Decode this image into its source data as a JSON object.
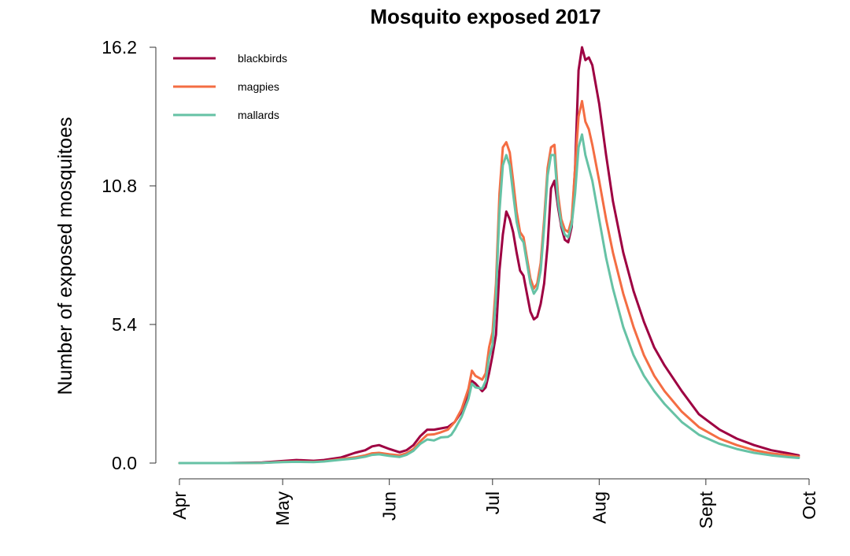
{
  "chart_data": {
    "type": "line",
    "title": "Mosquito exposed 2017",
    "xlabel": "",
    "ylabel": "Number of exposed mosquitoes",
    "xlim": [
      "2017-04-01",
      "2017-10-01"
    ],
    "ylim": [
      0,
      16.2
    ],
    "y_ticks": [
      0.0,
      5.4,
      10.8,
      16.2
    ],
    "y_tick_labels": [
      "0.0",
      "5.4",
      "10.8",
      "16.2"
    ],
    "x_ticks": [
      "2017-04-01",
      "2017-05-01",
      "2017-06-01",
      "2017-07-01",
      "2017-08-01",
      "2017-09-01",
      "2017-10-01"
    ],
    "x_tick_labels": [
      "Apr",
      "May",
      "Jun",
      "Jul",
      "Aug",
      "Sept",
      "Oct"
    ],
    "grid": false,
    "legend_position": "top-left",
    "series": [
      {
        "name": "blackbirds",
        "color": "#9E0142",
        "points": [
          [
            "2017-04-01",
            0.0
          ],
          [
            "2017-04-15",
            0.0
          ],
          [
            "2017-04-25",
            0.02
          ],
          [
            "2017-05-01",
            0.08
          ],
          [
            "2017-05-05",
            0.12
          ],
          [
            "2017-05-10",
            0.09
          ],
          [
            "2017-05-13",
            0.12
          ],
          [
            "2017-05-18",
            0.22
          ],
          [
            "2017-05-22",
            0.4
          ],
          [
            "2017-05-25",
            0.5
          ],
          [
            "2017-05-27",
            0.65
          ],
          [
            "2017-05-29",
            0.7
          ],
          [
            "2017-06-01",
            0.55
          ],
          [
            "2017-06-04",
            0.42
          ],
          [
            "2017-06-06",
            0.5
          ],
          [
            "2017-06-08",
            0.7
          ],
          [
            "2017-06-10",
            1.05
          ],
          [
            "2017-06-12",
            1.3
          ],
          [
            "2017-06-14",
            1.3
          ],
          [
            "2017-06-16",
            1.35
          ],
          [
            "2017-06-18",
            1.4
          ],
          [
            "2017-06-19",
            1.5
          ],
          [
            "2017-06-20",
            1.6
          ],
          [
            "2017-06-22",
            2.0
          ],
          [
            "2017-06-24",
            2.7
          ],
          [
            "2017-06-25",
            3.2
          ],
          [
            "2017-06-26",
            3.1
          ],
          [
            "2017-06-28",
            2.8
          ],
          [
            "2017-06-29",
            2.95
          ],
          [
            "2017-06-30",
            3.5
          ],
          [
            "2017-07-01",
            4.2
          ],
          [
            "2017-07-02",
            5.0
          ],
          [
            "2017-07-03",
            7.5
          ],
          [
            "2017-07-04",
            8.9
          ],
          [
            "2017-07-05",
            9.8
          ],
          [
            "2017-07-06",
            9.5
          ],
          [
            "2017-07-07",
            9.0
          ],
          [
            "2017-07-08",
            8.2
          ],
          [
            "2017-07-09",
            7.5
          ],
          [
            "2017-07-10",
            7.3
          ],
          [
            "2017-07-11",
            6.6
          ],
          [
            "2017-07-12",
            5.9
          ],
          [
            "2017-07-13",
            5.6
          ],
          [
            "2017-07-14",
            5.7
          ],
          [
            "2017-07-15",
            6.2
          ],
          [
            "2017-07-16",
            7.0
          ],
          [
            "2017-07-17",
            8.5
          ],
          [
            "2017-07-18",
            10.7
          ],
          [
            "2017-07-19",
            11.0
          ],
          [
            "2017-07-20",
            10.0
          ],
          [
            "2017-07-21",
            9.2
          ],
          [
            "2017-07-22",
            8.7
          ],
          [
            "2017-07-23",
            8.6
          ],
          [
            "2017-07-24",
            9.2
          ],
          [
            "2017-07-25",
            11.5
          ],
          [
            "2017-07-26",
            15.3
          ],
          [
            "2017-07-27",
            16.2
          ],
          [
            "2017-07-28",
            15.7
          ],
          [
            "2017-07-29",
            15.8
          ],
          [
            "2017-07-30",
            15.5
          ],
          [
            "2017-08-01",
            14.0
          ],
          [
            "2017-08-03",
            12.0
          ],
          [
            "2017-08-05",
            10.2
          ],
          [
            "2017-08-08",
            8.2
          ],
          [
            "2017-08-11",
            6.7
          ],
          [
            "2017-08-14",
            5.5
          ],
          [
            "2017-08-17",
            4.5
          ],
          [
            "2017-08-20",
            3.8
          ],
          [
            "2017-08-25",
            2.8
          ],
          [
            "2017-08-30",
            1.9
          ],
          [
            "2017-09-05",
            1.3
          ],
          [
            "2017-09-10",
            0.95
          ],
          [
            "2017-09-15",
            0.7
          ],
          [
            "2017-09-20",
            0.5
          ],
          [
            "2017-09-25",
            0.38
          ],
          [
            "2017-09-28",
            0.3
          ]
        ]
      },
      {
        "name": "magpies",
        "color": "#F46D43",
        "points": [
          [
            "2017-04-01",
            0.0
          ],
          [
            "2017-04-15",
            0.0
          ],
          [
            "2017-04-25",
            0.01
          ],
          [
            "2017-05-01",
            0.05
          ],
          [
            "2017-05-05",
            0.06
          ],
          [
            "2017-05-10",
            0.05
          ],
          [
            "2017-05-13",
            0.07
          ],
          [
            "2017-05-18",
            0.16
          ],
          [
            "2017-05-22",
            0.22
          ],
          [
            "2017-05-25",
            0.3
          ],
          [
            "2017-05-27",
            0.38
          ],
          [
            "2017-05-29",
            0.4
          ],
          [
            "2017-06-01",
            0.34
          ],
          [
            "2017-06-04",
            0.3
          ],
          [
            "2017-06-06",
            0.38
          ],
          [
            "2017-06-08",
            0.55
          ],
          [
            "2017-06-10",
            0.85
          ],
          [
            "2017-06-12",
            1.1
          ],
          [
            "2017-06-14",
            1.12
          ],
          [
            "2017-06-16",
            1.2
          ],
          [
            "2017-06-18",
            1.3
          ],
          [
            "2017-06-19",
            1.45
          ],
          [
            "2017-06-20",
            1.6
          ],
          [
            "2017-06-22",
            2.1
          ],
          [
            "2017-06-24",
            2.9
          ],
          [
            "2017-06-25",
            3.6
          ],
          [
            "2017-06-26",
            3.4
          ],
          [
            "2017-06-28",
            3.25
          ],
          [
            "2017-06-29",
            3.5
          ],
          [
            "2017-06-30",
            4.5
          ],
          [
            "2017-07-01",
            5.1
          ],
          [
            "2017-07-02",
            7.0
          ],
          [
            "2017-07-03",
            10.5
          ],
          [
            "2017-07-04",
            12.3
          ],
          [
            "2017-07-05",
            12.5
          ],
          [
            "2017-07-06",
            12.1
          ],
          [
            "2017-07-07",
            11.0
          ],
          [
            "2017-07-08",
            9.8
          ],
          [
            "2017-07-09",
            9.0
          ],
          [
            "2017-07-10",
            8.8
          ],
          [
            "2017-07-11",
            8.0
          ],
          [
            "2017-07-12",
            7.2
          ],
          [
            "2017-07-13",
            6.8
          ],
          [
            "2017-07-14",
            7.0
          ],
          [
            "2017-07-15",
            7.8
          ],
          [
            "2017-07-16",
            9.5
          ],
          [
            "2017-07-17",
            11.5
          ],
          [
            "2017-07-18",
            12.3
          ],
          [
            "2017-07-19",
            12.4
          ],
          [
            "2017-07-20",
            10.5
          ],
          [
            "2017-07-21",
            9.5
          ],
          [
            "2017-07-22",
            9.1
          ],
          [
            "2017-07-23",
            9.0
          ],
          [
            "2017-07-24",
            9.5
          ],
          [
            "2017-07-25",
            11.5
          ],
          [
            "2017-07-26",
            13.5
          ],
          [
            "2017-07-27",
            14.1
          ],
          [
            "2017-07-28",
            13.3
          ],
          [
            "2017-07-29",
            13.0
          ],
          [
            "2017-07-30",
            12.4
          ],
          [
            "2017-08-01",
            11.0
          ],
          [
            "2017-08-03",
            9.5
          ],
          [
            "2017-08-05",
            8.2
          ],
          [
            "2017-08-08",
            6.6
          ],
          [
            "2017-08-11",
            5.3
          ],
          [
            "2017-08-14",
            4.2
          ],
          [
            "2017-08-17",
            3.4
          ],
          [
            "2017-08-20",
            2.8
          ],
          [
            "2017-08-25",
            2.0
          ],
          [
            "2017-08-30",
            1.4
          ],
          [
            "2017-09-05",
            0.95
          ],
          [
            "2017-09-10",
            0.7
          ],
          [
            "2017-09-15",
            0.5
          ],
          [
            "2017-09-20",
            0.38
          ],
          [
            "2017-09-25",
            0.3
          ],
          [
            "2017-09-28",
            0.25
          ]
        ]
      },
      {
        "name": "mallards",
        "color": "#66C2A5",
        "points": [
          [
            "2017-04-01",
            0.0
          ],
          [
            "2017-04-15",
            0.0
          ],
          [
            "2017-04-25",
            0.01
          ],
          [
            "2017-05-01",
            0.04
          ],
          [
            "2017-05-05",
            0.05
          ],
          [
            "2017-05-10",
            0.04
          ],
          [
            "2017-05-13",
            0.06
          ],
          [
            "2017-05-18",
            0.13
          ],
          [
            "2017-05-22",
            0.18
          ],
          [
            "2017-05-25",
            0.25
          ],
          [
            "2017-05-27",
            0.32
          ],
          [
            "2017-05-29",
            0.34
          ],
          [
            "2017-06-01",
            0.28
          ],
          [
            "2017-06-04",
            0.24
          ],
          [
            "2017-06-06",
            0.32
          ],
          [
            "2017-06-08",
            0.48
          ],
          [
            "2017-06-10",
            0.75
          ],
          [
            "2017-06-12",
            0.92
          ],
          [
            "2017-06-14",
            0.88
          ],
          [
            "2017-06-16",
            1.0
          ],
          [
            "2017-06-18",
            1.02
          ],
          [
            "2017-06-19",
            1.1
          ],
          [
            "2017-06-20",
            1.3
          ],
          [
            "2017-06-22",
            1.8
          ],
          [
            "2017-06-24",
            2.5
          ],
          [
            "2017-06-25",
            3.1
          ],
          [
            "2017-06-26",
            2.95
          ],
          [
            "2017-06-28",
            2.9
          ],
          [
            "2017-06-29",
            3.2
          ],
          [
            "2017-06-30",
            4.1
          ],
          [
            "2017-07-01",
            4.6
          ],
          [
            "2017-07-02",
            6.5
          ],
          [
            "2017-07-03",
            9.8
          ],
          [
            "2017-07-04",
            11.6
          ],
          [
            "2017-07-05",
            12.0
          ],
          [
            "2017-07-06",
            11.6
          ],
          [
            "2017-07-07",
            10.5
          ],
          [
            "2017-07-08",
            9.4
          ],
          [
            "2017-07-09",
            8.8
          ],
          [
            "2017-07-10",
            8.6
          ],
          [
            "2017-07-11",
            7.8
          ],
          [
            "2017-07-12",
            7.0
          ],
          [
            "2017-07-13",
            6.6
          ],
          [
            "2017-07-14",
            6.8
          ],
          [
            "2017-07-15",
            7.5
          ],
          [
            "2017-07-16",
            9.2
          ],
          [
            "2017-07-17",
            11.2
          ],
          [
            "2017-07-18",
            12.0
          ],
          [
            "2017-07-19",
            12.0
          ],
          [
            "2017-07-20",
            10.2
          ],
          [
            "2017-07-21",
            9.3
          ],
          [
            "2017-07-22",
            8.9
          ],
          [
            "2017-07-23",
            8.8
          ],
          [
            "2017-07-24",
            9.3
          ],
          [
            "2017-07-25",
            10.5
          ],
          [
            "2017-07-26",
            12.3
          ],
          [
            "2017-07-27",
            12.8
          ],
          [
            "2017-07-28",
            12.0
          ],
          [
            "2017-07-29",
            11.5
          ],
          [
            "2017-07-30",
            11.0
          ],
          [
            "2017-08-01",
            9.5
          ],
          [
            "2017-08-03",
            8.0
          ],
          [
            "2017-08-05",
            6.8
          ],
          [
            "2017-08-08",
            5.3
          ],
          [
            "2017-08-11",
            4.2
          ],
          [
            "2017-08-14",
            3.4
          ],
          [
            "2017-08-17",
            2.8
          ],
          [
            "2017-08-20",
            2.3
          ],
          [
            "2017-08-25",
            1.6
          ],
          [
            "2017-08-30",
            1.1
          ],
          [
            "2017-09-05",
            0.75
          ],
          [
            "2017-09-10",
            0.55
          ],
          [
            "2017-09-15",
            0.4
          ],
          [
            "2017-09-20",
            0.3
          ],
          [
            "2017-09-25",
            0.23
          ],
          [
            "2017-09-28",
            0.2
          ]
        ]
      }
    ]
  }
}
